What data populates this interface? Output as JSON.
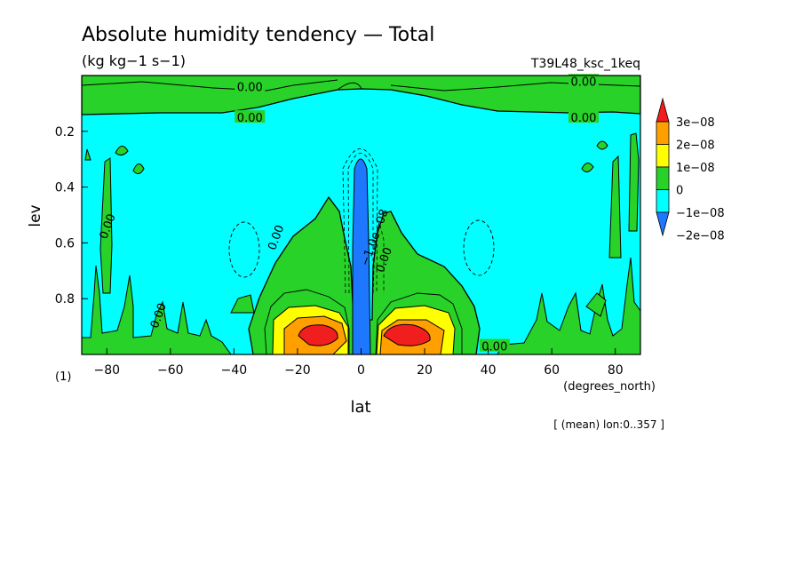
{
  "chart_data": {
    "type": "heatmap",
    "title": "Absolute humidity tendency — Total",
    "subtitle": "(kg kg−1 s−1)",
    "run_label": "T39L48_ksc_1keq",
    "xlabel": "lat",
    "x_units_label": "(degrees_north)",
    "ylabel": "lev",
    "y_units_label": "(1)",
    "note": "[ (mean) lon:0..357 ]",
    "xlim": [
      -87.9,
      87.9
    ],
    "ylim": [
      0.0,
      1.0
    ],
    "y_inverted": true,
    "xticks": [
      -80,
      -60,
      -40,
      -20,
      0,
      20,
      40,
      60,
      80
    ],
    "xtick_labels": [
      "−80",
      "−60",
      "−40",
      "−20",
      "0",
      "20",
      "40",
      "60",
      "80"
    ],
    "yticks": [
      0.2,
      0.4,
      0.6,
      0.8
    ],
    "ytick_labels": [
      "0.2",
      "0.4",
      "0.6",
      "0.8"
    ],
    "colorbar": {
      "levels": [
        -2e-08,
        -1e-08,
        0,
        1e-08,
        2e-08,
        3e-08
      ],
      "labels": [
        "−2e−08",
        "−1e−08",
        "0",
        "1e−08",
        "2e−08",
        "3e−08"
      ],
      "colors": [
        "#1e78ff",
        "#00ffff",
        "#28d228",
        "#ffff00",
        "#ffa000",
        "#f01e1e"
      ]
    },
    "contour_labels": [
      {
        "text": "0.00",
        "lat": -35,
        "lev": 0.04
      },
      {
        "text": "0.00",
        "lat": -35,
        "lev": 0.15
      },
      {
        "text": "0.00",
        "lat": 70,
        "lev": 0.02
      },
      {
        "text": "0.00",
        "lat": 70,
        "lev": 0.15
      },
      {
        "text": "0.00",
        "lat": -80,
        "lev": 0.54
      },
      {
        "text": "0.00",
        "lat": -27,
        "lev": 0.58
      },
      {
        "text": "0.00",
        "lat": 7,
        "lev": 0.66
      },
      {
        "text": "−1.0e−08",
        "lat": 4,
        "lev": 0.58
      },
      {
        "text": "0.00",
        "lat": -64,
        "lev": 0.86
      },
      {
        "text": "0.00",
        "lat": 42,
        "lev": 0.97
      }
    ],
    "regions": [
      {
        "name": "near-zero positive upper band",
        "value_class": "0..1e-08",
        "lat": [
          -87.9,
          87.9
        ],
        "lev": [
          0.0,
          0.15
        ]
      },
      {
        "name": "slightly negative interior",
        "value_class": "-1e-08..0",
        "lat": [
          -87.9,
          87.9
        ],
        "lev": [
          0.15,
          1.0
        ]
      },
      {
        "name": "equatorial drying column",
        "value_class": "-2e-08..-1e-08",
        "lat": [
          -2,
          2
        ],
        "lev": [
          0.3,
          0.95
        ]
      },
      {
        "name": "SH subtropical maximum",
        "value_class": "> 3e-08",
        "lat": [
          -17,
          -5
        ],
        "lev": [
          0.9,
          0.95
        ]
      },
      {
        "name": "NH subtropical maximum",
        "value_class": "> 3e-08",
        "lat": [
          5,
          17
        ],
        "lev": [
          0.9,
          0.95
        ]
      }
    ]
  }
}
